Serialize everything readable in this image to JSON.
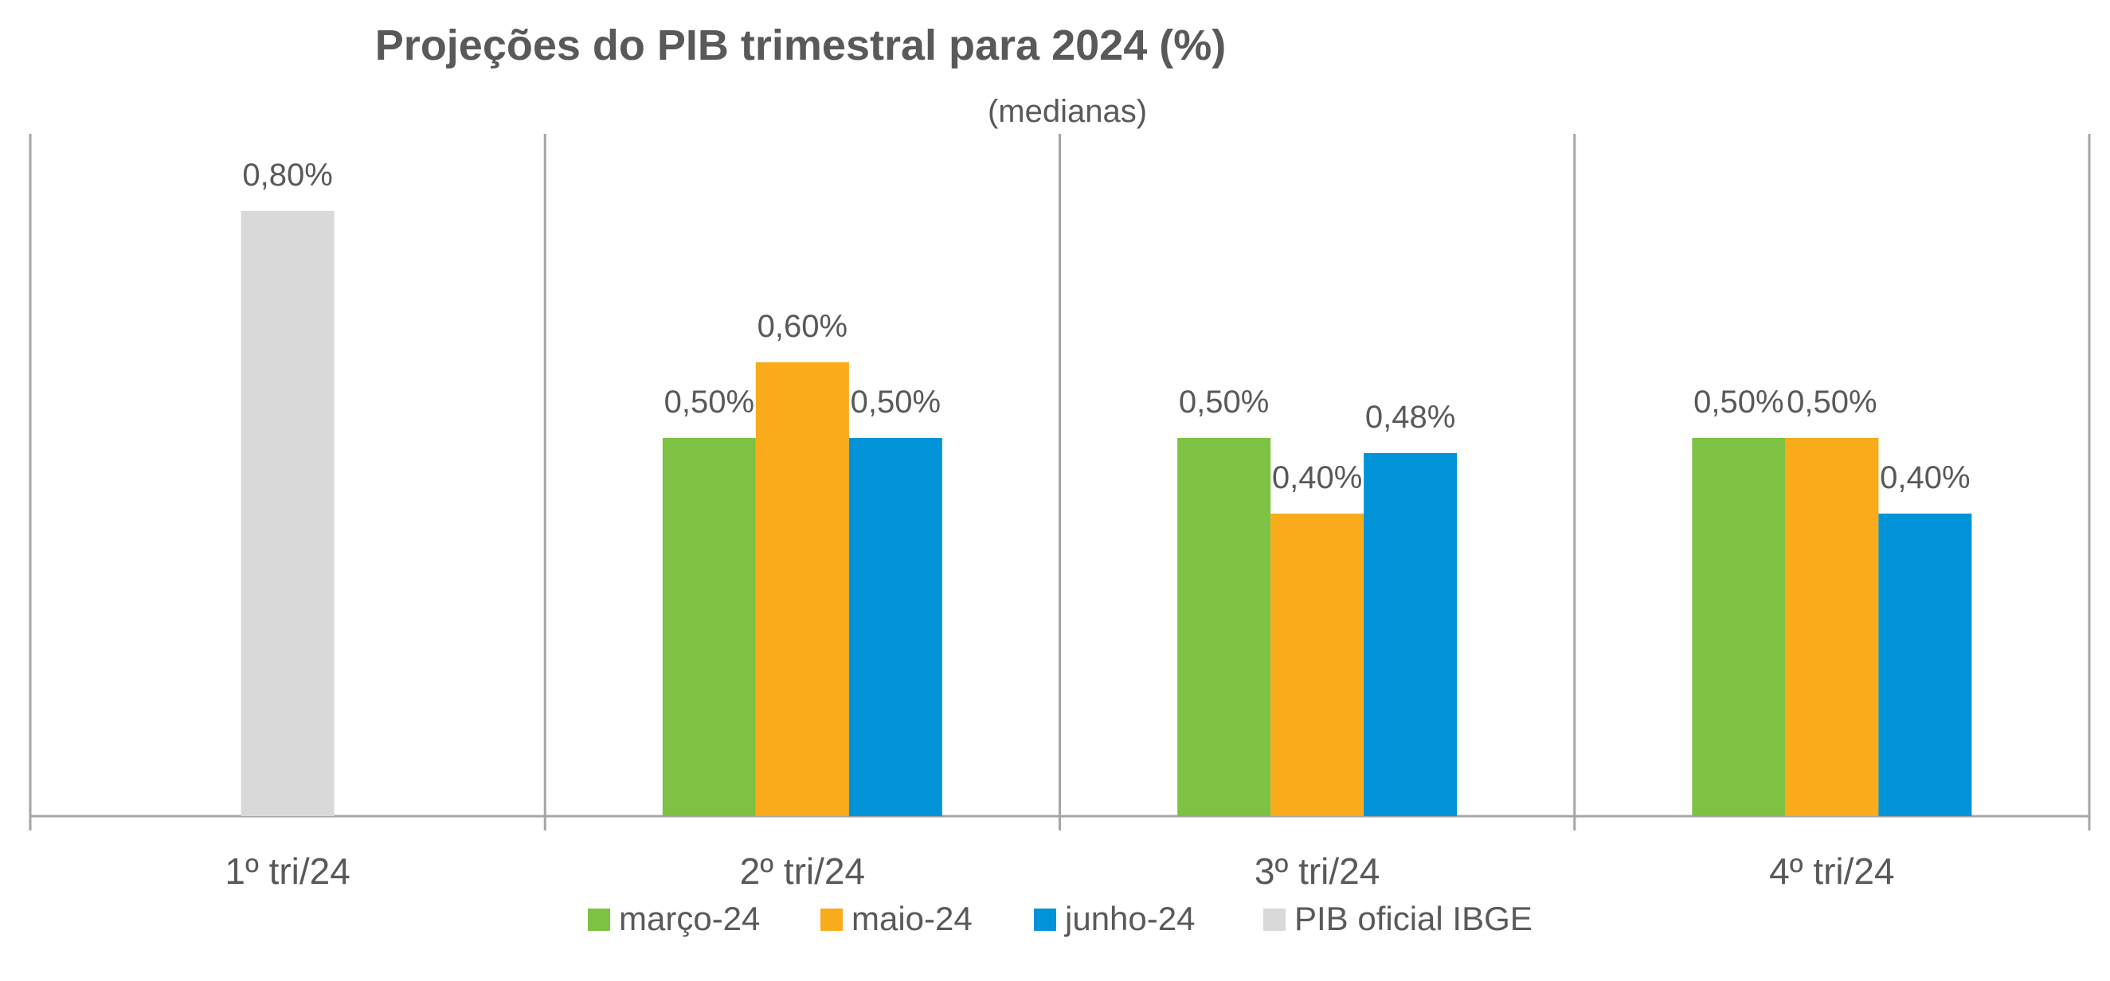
{
  "chart_data": {
    "type": "bar",
    "title": "Projeções do PIB trimestral para 2024 (%)",
    "subtitle": "(medianas)",
    "categories": [
      "1º tri/24",
      "2º tri/24",
      "3º tri/24",
      "4º tri/24"
    ],
    "series": [
      {
        "name": "março-24",
        "color": "#7dc242",
        "values": [
          null,
          0.5,
          0.5,
          0.5
        ],
        "labels": [
          "",
          "0,50%",
          "0,50%",
          "0,50%"
        ]
      },
      {
        "name": "maio-24",
        "color": "#f9ab1b",
        "values": [
          null,
          0.6,
          0.4,
          0.5
        ],
        "labels": [
          "",
          "0,60%",
          "0,40%",
          "0,50%"
        ]
      },
      {
        "name": "junho-24",
        "color": "#0093d8",
        "values": [
          null,
          0.5,
          0.48,
          0.4
        ],
        "labels": [
          "",
          "0,50%",
          "0,48%",
          "0,40%"
        ]
      },
      {
        "name": "PIB oficial IBGE",
        "color": "#d9d9d9",
        "values": [
          0.8,
          null,
          null,
          null
        ],
        "labels": [
          "0,80%",
          "",
          "",
          ""
        ]
      }
    ],
    "ylim": [
      0,
      0.9
    ],
    "grid": false,
    "legend": "bottom",
    "colors": {
      "title": "#595959",
      "text": "#595959",
      "axis": "#a6a6a6"
    }
  }
}
